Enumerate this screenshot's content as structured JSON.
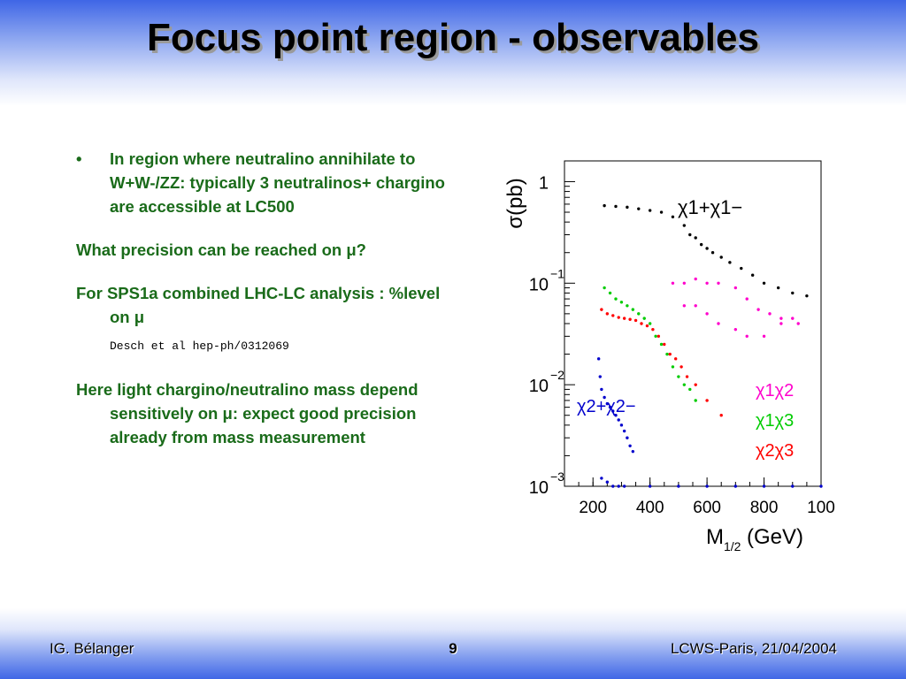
{
  "slide": {
    "title": "Focus point region - observables",
    "bullet1": "In region where neutralino annihilate to W+W-/ZZ: typically 3 neutralinos+ chargino are accessible at LC500",
    "para2": "What precision can be reached on μ?",
    "para3": "For SPS1a combined LHC-LC analysis : %level on μ",
    "reference": "Desch et al hep-ph/0312069",
    "para4": "Here light chargino/neutralino mass depend sensitively on μ: expect good precision already from mass measurement"
  },
  "footer": {
    "author": "IG. Bélanger",
    "page": "9",
    "event": "LCWS-Paris, 21/04/2004"
  },
  "chart_data": {
    "type": "scatter",
    "xlabel": "M",
    "xlabel_sub": "1/2",
    "xlabel_unit": "(GeV)",
    "ylabel": "σ(pb)",
    "x_ticks": [
      "200",
      "400",
      "600",
      "800",
      "100"
    ],
    "y_ticks": [
      {
        "base": "1",
        "exp": ""
      },
      {
        "base": "10",
        "exp": "−1"
      },
      {
        "base": "10",
        "exp": "−2"
      },
      {
        "base": "10",
        "exp": "−3"
      }
    ],
    "xlim": [
      100,
      1000
    ],
    "log_y": true,
    "ylim": [
      0.001,
      1.6
    ],
    "legend_placement": "right",
    "series": [
      {
        "name": "χ1+χ1−",
        "color": "#000000",
        "points": [
          [
            240,
            0.58
          ],
          [
            280,
            0.57
          ],
          [
            320,
            0.56
          ],
          [
            360,
            0.54
          ],
          [
            400,
            0.52
          ],
          [
            440,
            0.5
          ],
          [
            480,
            0.45
          ],
          [
            520,
            0.37
          ],
          [
            540,
            0.3
          ],
          [
            560,
            0.28
          ],
          [
            580,
            0.24
          ],
          [
            600,
            0.22
          ],
          [
            620,
            0.2
          ],
          [
            650,
            0.18
          ],
          [
            680,
            0.16
          ],
          [
            720,
            0.14
          ],
          [
            760,
            0.12
          ],
          [
            800,
            0.1
          ],
          [
            850,
            0.09
          ],
          [
            900,
            0.08
          ],
          [
            950,
            0.075
          ]
        ]
      },
      {
        "name": "χ1χ2",
        "color": "#ff00cc",
        "points": [
          [
            480,
            0.1
          ],
          [
            520,
            0.1
          ],
          [
            560,
            0.11
          ],
          [
            600,
            0.1
          ],
          [
            640,
            0.1
          ],
          [
            700,
            0.09
          ],
          [
            740,
            0.07
          ],
          [
            780,
            0.055
          ],
          [
            820,
            0.05
          ],
          [
            860,
            0.045
          ],
          [
            900,
            0.045
          ],
          [
            520,
            0.06
          ],
          [
            560,
            0.06
          ],
          [
            600,
            0.05
          ],
          [
            640,
            0.04
          ],
          [
            700,
            0.035
          ],
          [
            740,
            0.03
          ],
          [
            800,
            0.03
          ],
          [
            860,
            0.04
          ],
          [
            920,
            0.04
          ]
        ]
      },
      {
        "name": "χ1χ3",
        "color": "#00cc00",
        "points": [
          [
            240,
            0.09
          ],
          [
            260,
            0.08
          ],
          [
            280,
            0.07
          ],
          [
            300,
            0.065
          ],
          [
            320,
            0.06
          ],
          [
            340,
            0.055
          ],
          [
            360,
            0.05
          ],
          [
            380,
            0.045
          ],
          [
            400,
            0.04
          ],
          [
            420,
            0.03
          ],
          [
            440,
            0.025
          ],
          [
            460,
            0.02
          ],
          [
            480,
            0.015
          ],
          [
            500,
            0.012
          ],
          [
            520,
            0.01
          ],
          [
            540,
            0.009
          ],
          [
            560,
            0.007
          ]
        ]
      },
      {
        "name": "χ2χ3",
        "color": "#ff0000",
        "points": [
          [
            230,
            0.055
          ],
          [
            250,
            0.05
          ],
          [
            270,
            0.048
          ],
          [
            290,
            0.046
          ],
          [
            310,
            0.045
          ],
          [
            330,
            0.044
          ],
          [
            350,
            0.043
          ],
          [
            370,
            0.04
          ],
          [
            390,
            0.038
          ],
          [
            410,
            0.035
          ],
          [
            430,
            0.03
          ],
          [
            450,
            0.025
          ],
          [
            470,
            0.02
          ],
          [
            490,
            0.018
          ],
          [
            510,
            0.015
          ],
          [
            530,
            0.012
          ],
          [
            560,
            0.01
          ],
          [
            600,
            0.007
          ],
          [
            650,
            0.005
          ]
        ]
      },
      {
        "name": "χ2+χ2−",
        "color": "#0000cc",
        "points": [
          [
            220,
            0.018
          ],
          [
            225,
            0.012
          ],
          [
            230,
            0.009
          ],
          [
            240,
            0.0075
          ],
          [
            250,
            0.0065
          ],
          [
            260,
            0.006
          ],
          [
            270,
            0.0055
          ],
          [
            280,
            0.005
          ],
          [
            290,
            0.0045
          ],
          [
            300,
            0.004
          ],
          [
            310,
            0.0035
          ],
          [
            320,
            0.003
          ],
          [
            330,
            0.0025
          ],
          [
            340,
            0.0022
          ],
          [
            230,
            0.0012
          ],
          [
            250,
            0.0011
          ],
          [
            270,
            0.001
          ],
          [
            290,
            0.001
          ],
          [
            310,
            0.001
          ],
          [
            400,
            0.001
          ],
          [
            500,
            0.001
          ],
          [
            600,
            0.001
          ],
          [
            700,
            0.001
          ],
          [
            800,
            0.001
          ],
          [
            900,
            0.001
          ],
          [
            1000,
            0.001
          ]
        ]
      }
    ]
  }
}
